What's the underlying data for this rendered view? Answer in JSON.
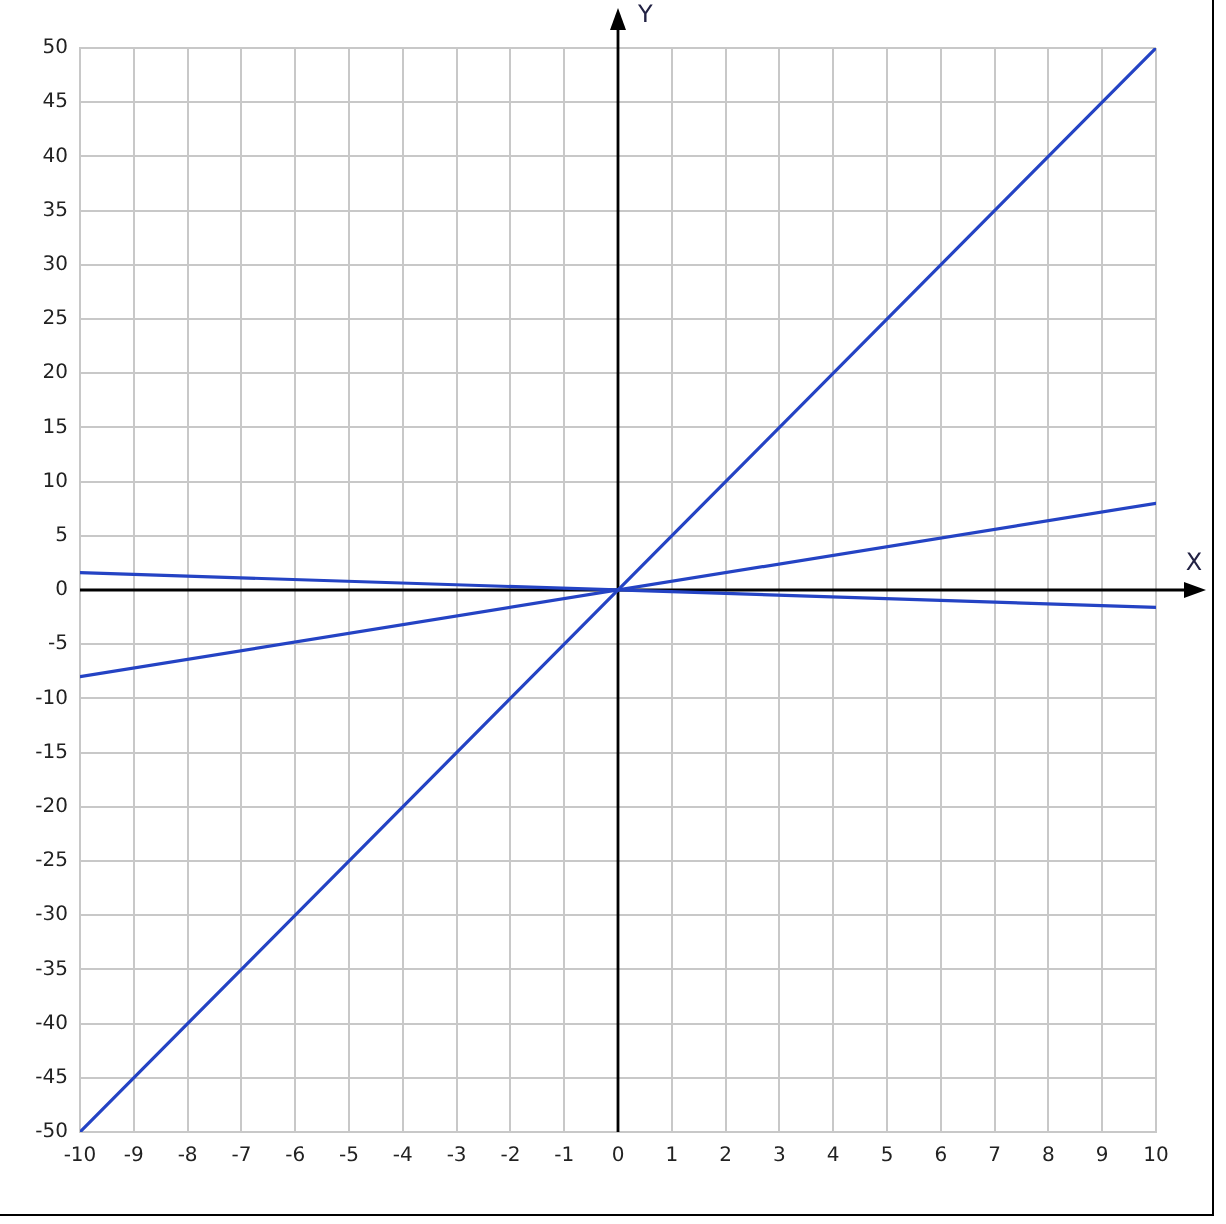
{
  "chart_data": {
    "type": "line",
    "xlabel": "X",
    "ylabel": "Y",
    "x": [
      -10,
      10
    ],
    "series": [
      {
        "color": "#2443c4",
        "values": [
          -50,
          50
        ]
      },
      {
        "color": "#2443c4",
        "values": [
          -8,
          8
        ]
      },
      {
        "color": "#2443c4",
        "values": [
          1.6,
          -1.6
        ]
      }
    ],
    "xlim": [
      -10,
      10
    ],
    "xticks": [
      -10,
      -9,
      -8,
      -7,
      -6,
      -5,
      -4,
      -3,
      -2,
      -1,
      0,
      1,
      2,
      3,
      4,
      5,
      6,
      7,
      8,
      9,
      10
    ],
    "ylim": [
      -50,
      50
    ],
    "yticks": [
      -50,
      -45,
      -40,
      -35,
      -30,
      -25,
      -20,
      -15,
      -10,
      -5,
      0,
      5,
      10,
      15,
      20,
      25,
      30,
      35,
      40,
      45,
      50
    ],
    "grid": true,
    "marker": "none",
    "line_style": "solid"
  }
}
